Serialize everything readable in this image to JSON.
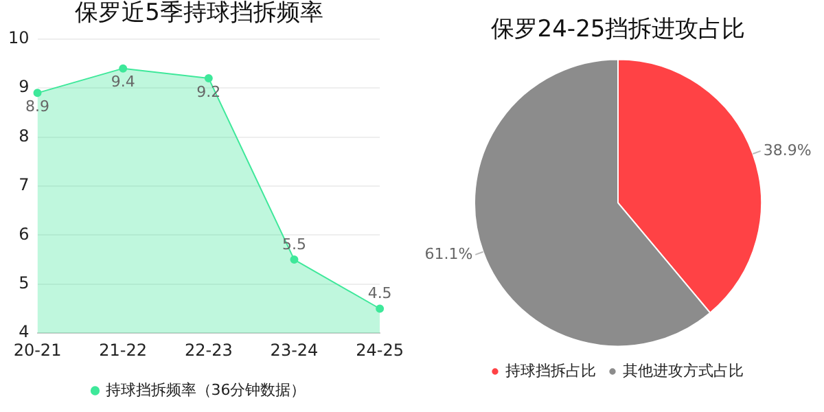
{
  "chart_data": [
    {
      "type": "area",
      "title": "保罗近5季持球挡拆频率",
      "categories": [
        "20-21",
        "21-22",
        "22-23",
        "23-24",
        "24-25"
      ],
      "series": [
        {
          "name": "持球挡拆频率（36分钟数据）",
          "color": "#3ee89a",
          "values": [
            8.9,
            9.4,
            9.2,
            5.5,
            4.5
          ]
        }
      ],
      "ylim": [
        4,
        10
      ],
      "yticks": [
        4,
        5,
        6,
        7,
        8,
        9,
        10
      ],
      "grid": "y",
      "legend": "bottom",
      "marker": "circle",
      "data_labels": true
    },
    {
      "type": "pie",
      "title": "保罗24-25挡拆进攻占比",
      "categories": [
        "持球挡拆占比",
        "其他进攻方式占比"
      ],
      "values": [
        38.9,
        61.1
      ],
      "colors": [
        "#ff4245",
        "#8c8c8c"
      ],
      "value_labels": [
        "38.9%",
        "61.1%"
      ],
      "legend": "bottom"
    }
  ]
}
